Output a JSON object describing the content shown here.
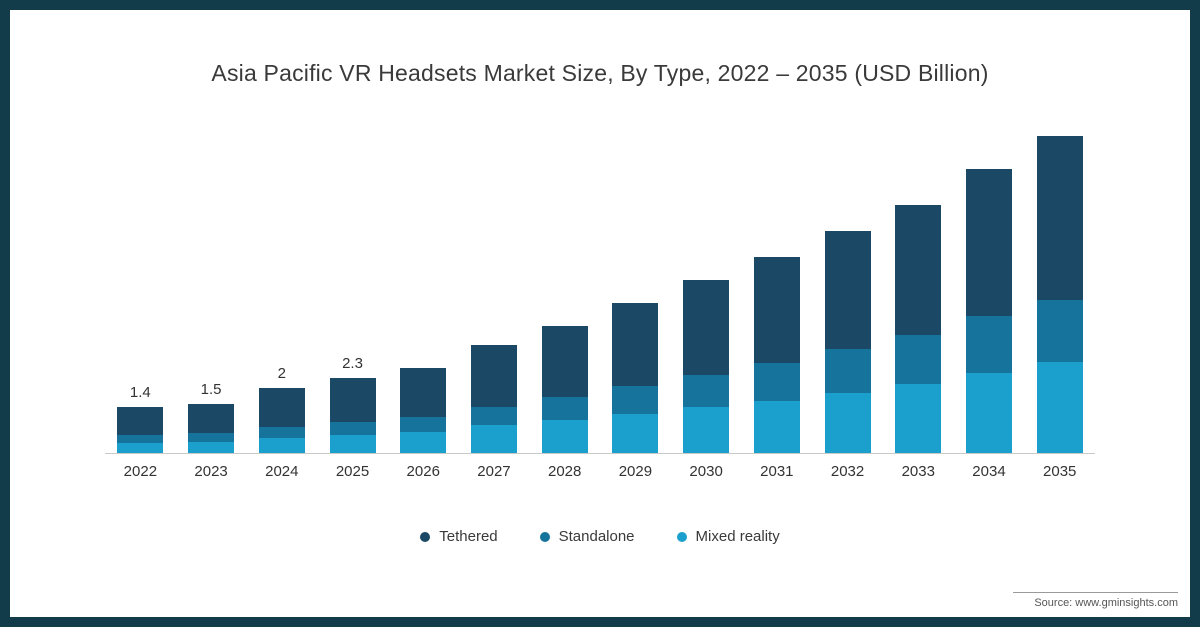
{
  "source": "Source: www.gminsights.com",
  "frame_color": "#133c4b",
  "chart_data": {
    "type": "bar",
    "stacked": true,
    "title": "Asia Pacific VR Headsets Market Size, By Type, 2022 – 2035 (USD Billion)",
    "xlabel": "",
    "ylabel": "",
    "ylim": [
      0,
      10
    ],
    "grid": false,
    "legend_position": "bottom",
    "categories": [
      "2022",
      "2023",
      "2024",
      "2025",
      "2026",
      "2027",
      "2028",
      "2029",
      "2030",
      "2031",
      "2032",
      "2033",
      "2034",
      "2035"
    ],
    "series": [
      {
        "name": "Tethered",
        "color": "#1b4965",
        "values": [
          0.85,
          0.9,
          1.2,
          1.35,
          1.5,
          1.9,
          2.2,
          2.55,
          2.9,
          3.25,
          3.6,
          4.0,
          4.5,
          5.0
        ]
      },
      {
        "name": "Standalone",
        "color": "#16749c",
        "values": [
          0.25,
          0.27,
          0.35,
          0.4,
          0.45,
          0.55,
          0.7,
          0.85,
          1.0,
          1.15,
          1.35,
          1.5,
          1.75,
          1.9
        ]
      },
      {
        "name": "Mixed reality",
        "color": "#1ba0cd",
        "values": [
          0.3,
          0.33,
          0.45,
          0.55,
          0.65,
          0.85,
          1.0,
          1.2,
          1.4,
          1.6,
          1.85,
          2.1,
          2.45,
          2.8
        ]
      }
    ],
    "totals": [
      1.4,
      1.5,
      2.0,
      2.3,
      2.6,
      3.3,
      3.9,
      4.6,
      5.3,
      6.0,
      6.8,
      7.6,
      8.7,
      9.7
    ],
    "data_labels": [
      "1.4",
      "1.5",
      "2",
      "2.3",
      "",
      "",
      "",
      "",
      "",
      "",
      "",
      "",
      "",
      ""
    ]
  }
}
